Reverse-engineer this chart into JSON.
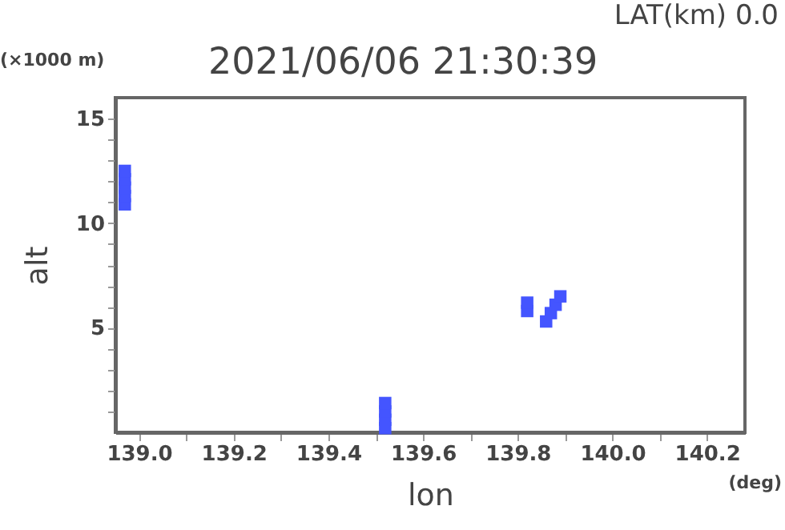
{
  "chart_data": {
    "type": "scatter",
    "title": "2021/06/06 21:30:39",
    "subtitle": "LAT(km) 0.0",
    "xlabel": "lon",
    "ylabel": "alt",
    "annotations": [
      "(×1000 m)",
      "(deg)"
    ],
    "marker": "square",
    "series": [
      {
        "color": "#4455ff",
        "x": [
          138.97,
          138.97,
          138.97,
          138.97,
          138.97,
          139.52,
          139.52,
          139.52,
          139.52,
          139.82,
          139.82,
          139.86,
          139.87,
          139.88,
          139.89
        ],
        "values": [
          10.9,
          11.3,
          11.7,
          12.1,
          12.5,
          0.2,
          0.6,
          1.0,
          1.4,
          5.8,
          6.2,
          5.3,
          5.7,
          6.1,
          6.5
        ]
      }
    ],
    "xlim": [
      138.95,
      140.28
    ],
    "xticks": [
      {
        "value": 139.0,
        "label": "139.0"
      },
      {
        "value": 139.1,
        "label": null
      },
      {
        "value": 139.2,
        "label": "139.2"
      },
      {
        "value": 139.3,
        "label": null
      },
      {
        "value": 139.4,
        "label": "139.4"
      },
      {
        "value": 139.5,
        "label": null
      },
      {
        "value": 139.6,
        "label": "139.6"
      },
      {
        "value": 139.7,
        "label": null
      },
      {
        "value": 139.8,
        "label": "139.8"
      },
      {
        "value": 139.9,
        "label": null
      },
      {
        "value": 140.0,
        "label": "140.0"
      },
      {
        "value": 140.1,
        "label": null
      },
      {
        "value": 140.2,
        "label": "140.2"
      }
    ],
    "ylim": [
      0,
      16
    ],
    "yticks": [
      {
        "value": 1,
        "label": null
      },
      {
        "value": 2,
        "label": null
      },
      {
        "value": 3,
        "label": null
      },
      {
        "value": 4,
        "label": null
      },
      5,
      {
        "value": 6,
        "label": null
      },
      {
        "value": 7,
        "label": null
      },
      {
        "value": 8,
        "label": null
      },
      {
        "value": 9,
        "label": null
      },
      10,
      {
        "value": 11,
        "label": null
      },
      {
        "value": 12,
        "label": null
      },
      {
        "value": 13,
        "label": null
      },
      {
        "value": 14,
        "label": null
      },
      15
    ]
  }
}
